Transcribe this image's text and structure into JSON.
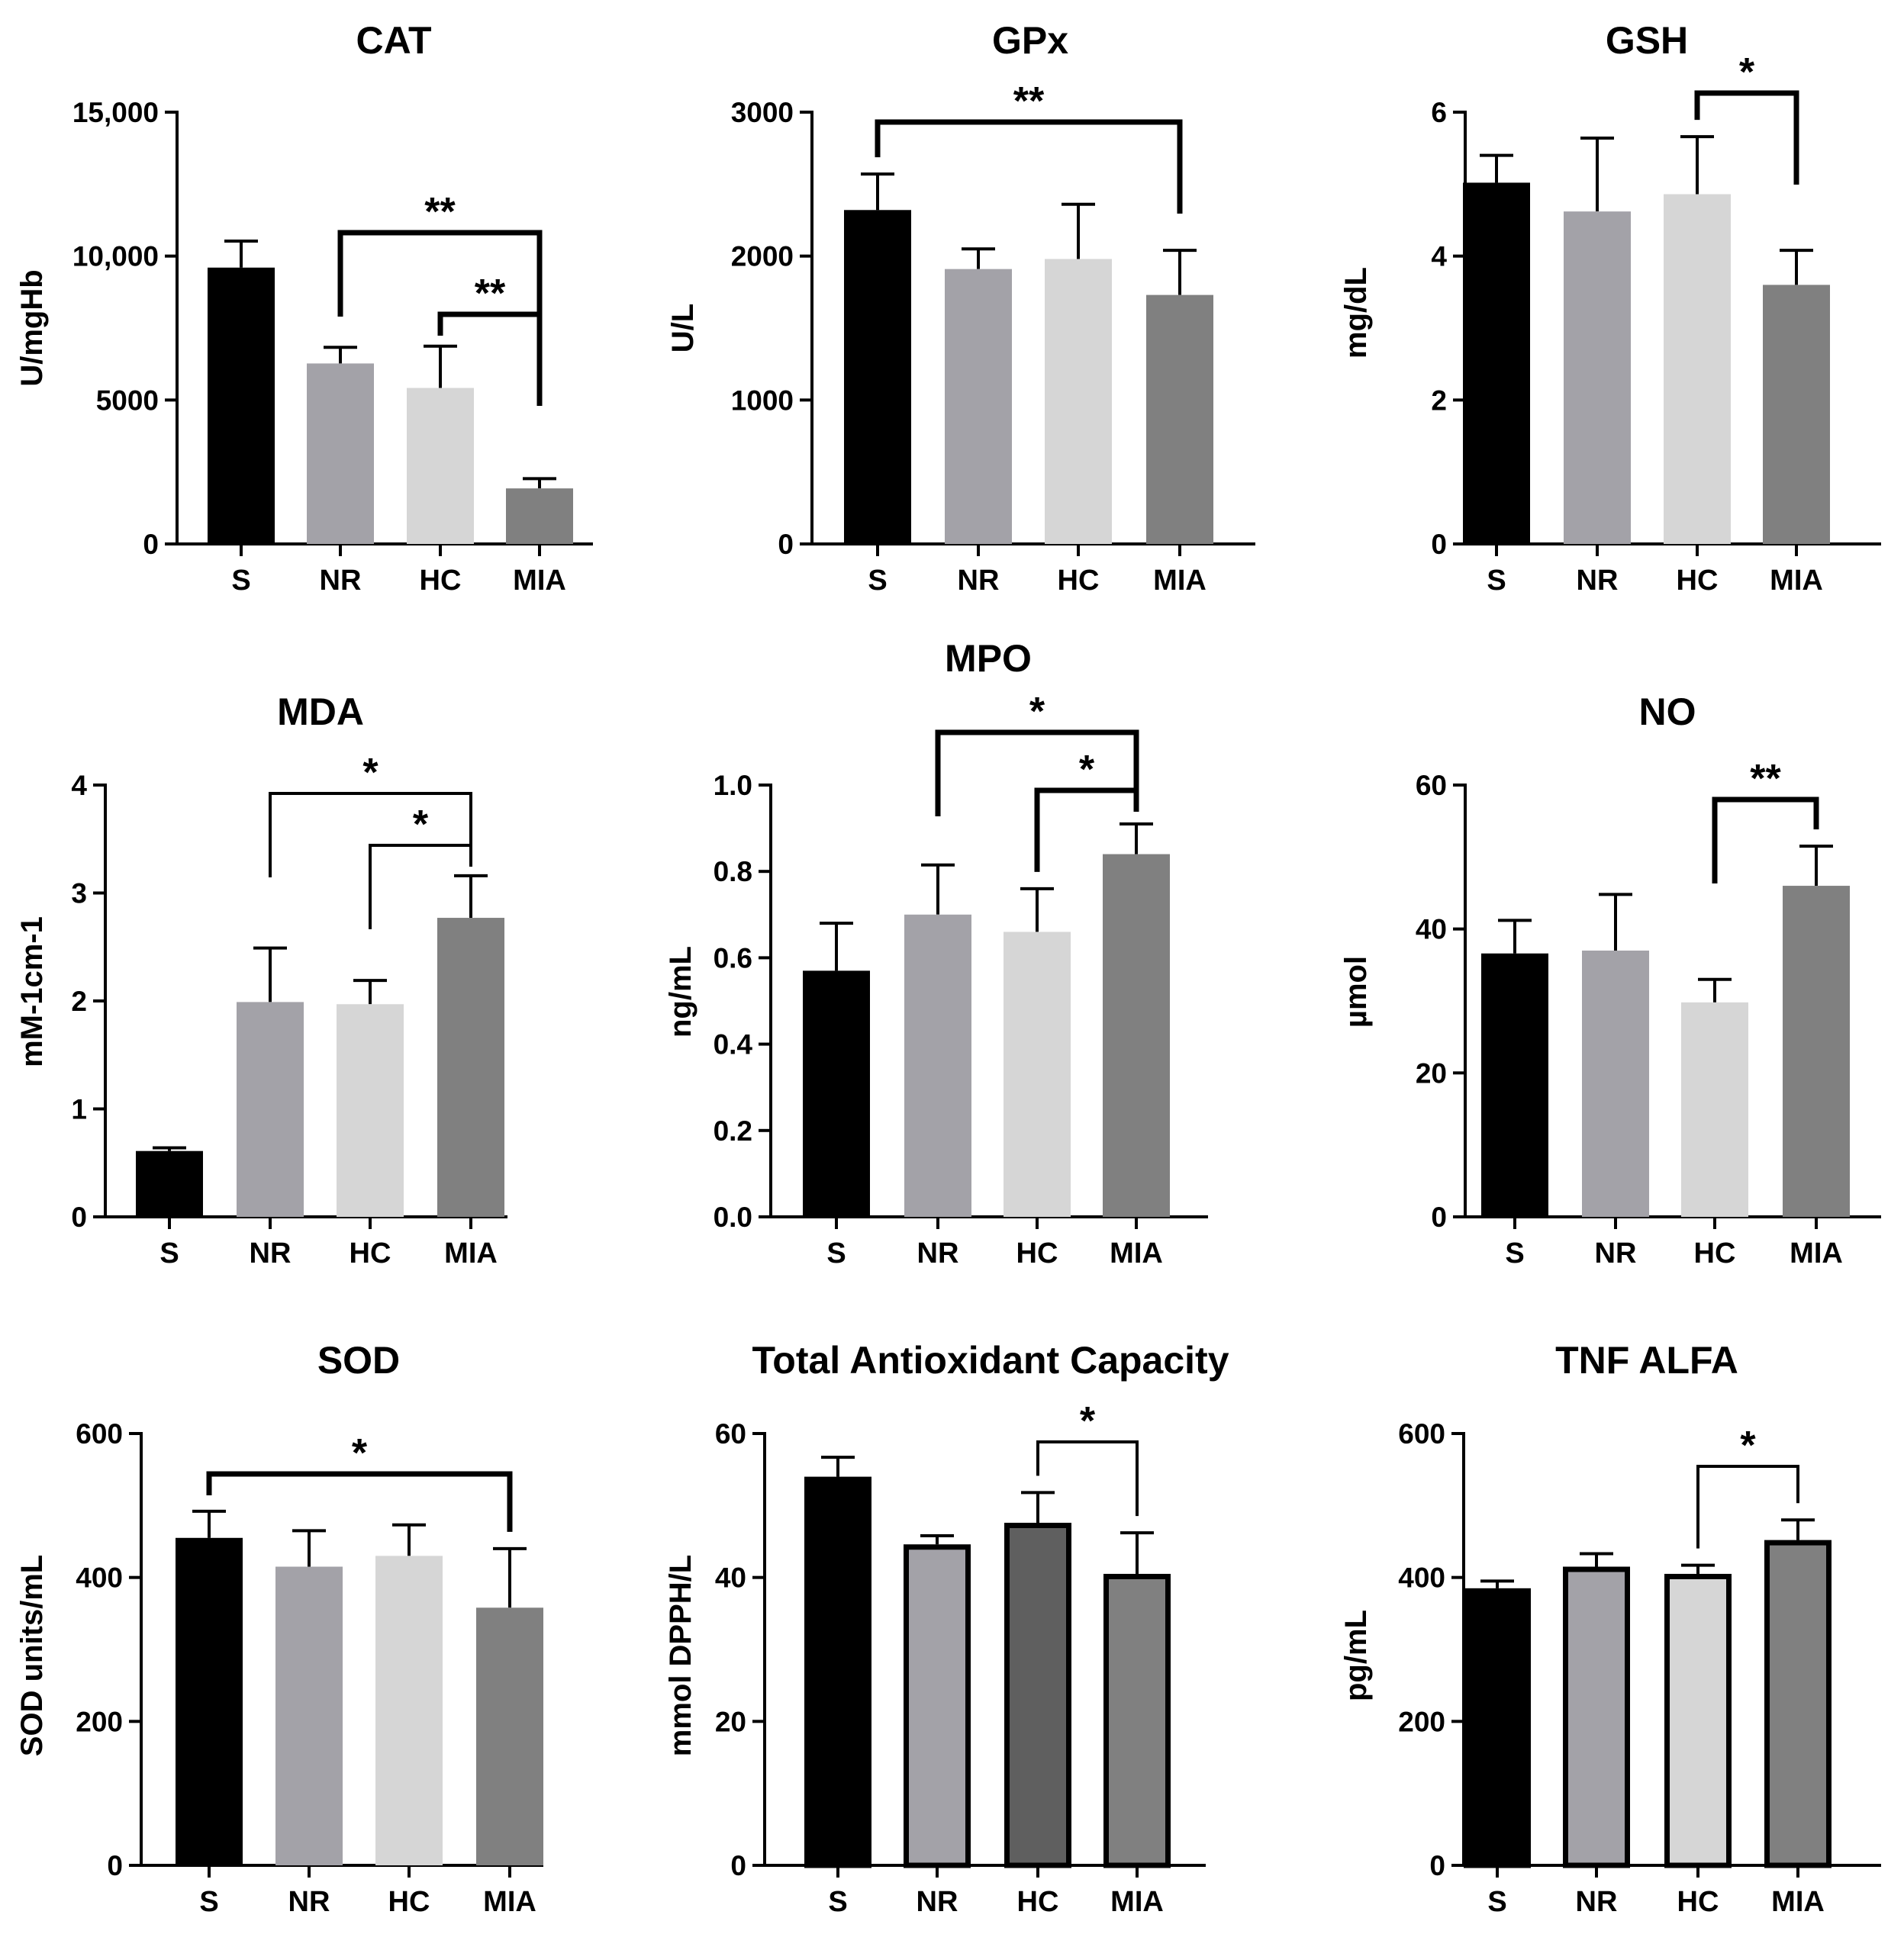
{
  "colors": {
    "S": "#000000",
    "NR": "#a3a2a8",
    "HC": "#d6d6d6",
    "MIA": "#808080",
    "HC_tac": "#5f5f5f"
  },
  "chart_data": [
    {
      "id": "cat",
      "type": "bar",
      "title": "CAT",
      "ylabel": "U/mgHb",
      "categories": [
        "S",
        "NR",
        "HC",
        "MIA"
      ],
      "values": [
        9600,
        6270,
        5420,
        1930
      ],
      "errors": [
        920,
        560,
        1450,
        340
      ],
      "ylim": [
        0,
        15000
      ],
      "ticks": [
        0,
        5000,
        10000,
        15000
      ],
      "tick_labels": [
        "0",
        "5000",
        "10,000",
        "15,000"
      ],
      "significance": [
        {
          "from": "NR",
          "to": "MIA",
          "label": "**"
        },
        {
          "from": "HC",
          "to": "MIA",
          "label": "**"
        }
      ]
    },
    {
      "id": "gpx",
      "type": "bar",
      "title": "GPx",
      "ylabel": "U/L",
      "categories": [
        "S",
        "NR",
        "HC",
        "MIA"
      ],
      "values": [
        2320,
        1910,
        1980,
        1730
      ],
      "errors": [
        250,
        140,
        380,
        310
      ],
      "ylim": [
        0,
        3000
      ],
      "ticks": [
        0,
        1000,
        2000,
        3000
      ],
      "tick_labels": [
        "0",
        "1000",
        "2000",
        "3000"
      ],
      "significance": [
        {
          "from": "S",
          "to": "MIA",
          "label": "**"
        }
      ]
    },
    {
      "id": "gsh",
      "type": "bar",
      "title": "GSH",
      "ylabel": "mg/dL",
      "categories": [
        "S",
        "NR",
        "HC",
        "MIA"
      ],
      "values": [
        5.02,
        4.62,
        4.86,
        3.6
      ],
      "errors": [
        0.38,
        1.02,
        0.8,
        0.48
      ],
      "ylim": [
        0,
        6
      ],
      "ticks": [
        0,
        2,
        4,
        6
      ],
      "tick_labels": [
        "0",
        "2",
        "4",
        "6"
      ],
      "significance": [
        {
          "from": "HC",
          "to": "MIA",
          "label": "*"
        }
      ]
    },
    {
      "id": "mda",
      "type": "bar",
      "title": "MDA",
      "ylabel": "mM-1cm-1",
      "categories": [
        "S",
        "NR",
        "HC",
        "MIA"
      ],
      "values": [
        0.61,
        1.99,
        1.97,
        2.77
      ],
      "errors": [
        0.03,
        0.5,
        0.22,
        0.39
      ],
      "ylim": [
        0,
        4
      ],
      "ticks": [
        0,
        1,
        2,
        3,
        4
      ],
      "tick_labels": [
        "0",
        "1",
        "2",
        "3",
        "4"
      ],
      "significance": [
        {
          "from": "NR",
          "to": "MIA",
          "label": "*"
        },
        {
          "from": "HC",
          "to": "MIA",
          "label": "*"
        }
      ]
    },
    {
      "id": "mpo",
      "type": "bar",
      "title": "MPO",
      "ylabel": "ng/mL",
      "categories": [
        "S",
        "NR",
        "HC",
        "MIA"
      ],
      "values": [
        0.57,
        0.7,
        0.66,
        0.84
      ],
      "errors": [
        0.11,
        0.115,
        0.1,
        0.07
      ],
      "ylim": [
        0,
        1
      ],
      "ticks": [
        0,
        0.2,
        0.4,
        0.6,
        0.8,
        1.0
      ],
      "tick_labels": [
        "0.0",
        "0.2",
        "0.4",
        "0.6",
        "0.8",
        "1.0"
      ],
      "significance": [
        {
          "from": "NR",
          "to": "MIA",
          "label": "*"
        },
        {
          "from": "HC",
          "to": "MIA",
          "label": "*"
        }
      ]
    },
    {
      "id": "no",
      "type": "bar",
      "title": "NO",
      "ylabel": "µmol",
      "categories": [
        "S",
        "NR",
        "HC",
        "MIA"
      ],
      "values": [
        36.6,
        37.0,
        29.8,
        46.0
      ],
      "errors": [
        4.6,
        7.8,
        3.2,
        5.5
      ],
      "ylim": [
        0,
        60
      ],
      "ticks": [
        0,
        20,
        40,
        60
      ],
      "tick_labels": [
        "0",
        "20",
        "40",
        "60"
      ],
      "significance": [
        {
          "from": "HC",
          "to": "MIA",
          "label": "**"
        }
      ]
    },
    {
      "id": "sod",
      "type": "bar",
      "title": "SOD",
      "ylabel": "SOD units/mL",
      "categories": [
        "S",
        "NR",
        "HC",
        "MIA"
      ],
      "values": [
        455,
        415,
        430,
        358
      ],
      "errors": [
        37,
        50,
        43,
        82
      ],
      "ylim": [
        0,
        600
      ],
      "ticks": [
        0,
        200,
        400,
        600
      ],
      "tick_labels": [
        "0",
        "200",
        "400",
        "600"
      ],
      "significance": [
        {
          "from": "S",
          "to": "MIA",
          "label": "*"
        }
      ]
    },
    {
      "id": "tac",
      "type": "bar",
      "title": "Total Antioxidant Capacity",
      "ylabel": "mmol DPPH/L",
      "categories": [
        "S",
        "NR",
        "HC",
        "MIA"
      ],
      "values": [
        54.0,
        44.6,
        47.6,
        40.5
      ],
      "errors": [
        2.7,
        1.2,
        4.2,
        5.7
      ],
      "ylim": [
        0,
        60
      ],
      "ticks": [
        0,
        20,
        40,
        60
      ],
      "tick_labels": [
        "0",
        "20",
        "40",
        "60"
      ],
      "significance": [
        {
          "from": "HC",
          "to": "MIA",
          "label": "*"
        }
      ]
    },
    {
      "id": "tnf",
      "type": "bar",
      "title": "TNF ALFA",
      "ylabel": "pg/mL",
      "categories": [
        "S",
        "NR",
        "HC",
        "MIA"
      ],
      "values": [
        385,
        415,
        405,
        452
      ],
      "errors": [
        10,
        18,
        12,
        28
      ],
      "ylim": [
        0,
        600
      ],
      "ticks": [
        0,
        200,
        400,
        600
      ],
      "tick_labels": [
        "0",
        "200",
        "400",
        "600"
      ],
      "significance": [
        {
          "from": "HC",
          "to": "MIA",
          "label": "*"
        }
      ]
    }
  ]
}
